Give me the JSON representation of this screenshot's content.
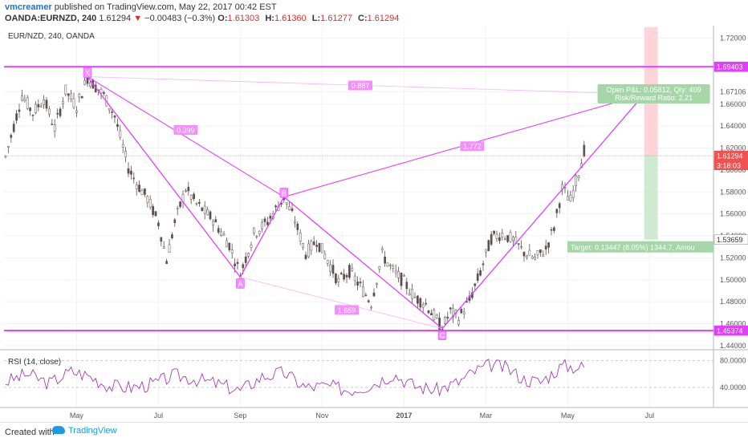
{
  "header": {
    "author": "vmcreamer",
    "published_text": "published on TradingView.com, May 22, 2017 00:42 EST",
    "symbol_line": "OANDA:EURNZD, 240",
    "last_price": "1.61294",
    "change": "−0.00483 (−0.3%)",
    "o_label": "O:",
    "o_value": "1.61303",
    "h_label": "H:",
    "h_value": "1.61360",
    "l_label": "L:",
    "l_value": "1.61277",
    "c_label": "C:",
    "c_value": "1.61294"
  },
  "chart": {
    "legend": "EUR/NZD, 240, OANDA",
    "rsi_legend": "RSI (14, close)",
    "price_axis": {
      "range": [
        1.437,
        1.73
      ],
      "ticks": [
        "1.72000",
        "1.67106",
        "1.66000",
        "1.64000",
        "1.62000",
        "1.60000",
        "1.58000",
        "1.56000",
        "1.54000",
        "1.52000",
        "1.50000",
        "1.48000",
        "1.46000",
        "1.44000"
      ],
      "tick_values": [
        1.72,
        1.67106,
        1.66,
        1.64,
        1.62,
        1.6,
        1.58,
        1.56,
        1.54,
        1.52,
        1.5,
        1.48,
        1.46,
        1.44
      ]
    },
    "price_badges": [
      {
        "label": "1.69403",
        "value": 1.69403,
        "color": "#e040fb"
      },
      {
        "label": "1.61294",
        "value": 1.61294,
        "color": "#ef5350"
      },
      {
        "label": "3:18:03",
        "value": 1.6045,
        "color": "#ef5350"
      },
      {
        "label": "1.53659",
        "value": 1.53659,
        "color": "#ffffff"
      },
      {
        "label": "1.45374",
        "value": 1.45374,
        "color": "#e040fb"
      }
    ],
    "rsi_axis": {
      "ticks": [
        "80.0000",
        "40.0000"
      ],
      "tick_values": [
        80,
        40
      ],
      "range": [
        10,
        95
      ]
    },
    "time_axis": {
      "labels": [
        "May",
        "Jul",
        "Sep",
        "Nov",
        "2017",
        "Mar",
        "May",
        "Jul"
      ],
      "bar_index": [
        26,
        56,
        86,
        116,
        146,
        176,
        206,
        236
      ],
      "bold": [
        false,
        false,
        false,
        false,
        true,
        false,
        false,
        false
      ]
    },
    "horizontal_levels": [
      1.69403,
      1.45374
    ],
    "current_price": 1.61294,
    "pattern_points": [
      {
        "label": "X",
        "bar": 30,
        "price": 1.685
      },
      {
        "label": "A",
        "bar": 86,
        "price": 1.5025
      },
      {
        "label": "B",
        "bar": 102,
        "price": 1.5755
      },
      {
        "label": "C",
        "bar": 160,
        "price": 1.4555
      },
      {
        "label": "D",
        "bar": 234,
        "price": 1.669
      }
    ],
    "ratios": [
      {
        "label": "0.887",
        "bar": 130,
        "price": 1.677
      },
      {
        "label": "0.399",
        "bar": 66,
        "price": 1.6365
      },
      {
        "label": "1.772",
        "bar": 171,
        "price": 1.6217
      },
      {
        "label": "1.659",
        "bar": 125,
        "price": 1.4725
      }
    ],
    "position": {
      "entry": 1.61294,
      "stop": 1.7301,
      "target": 1.53659,
      "bar_start": 234,
      "bar_end": 239,
      "pnl_line1": "Open P&L: 0.05812, Qty: 409",
      "pnl_line2": "Risk/Reward Ratio: 2.21",
      "target_text": "Target: 0.13447 (8.05%) 1344.7, Amou"
    },
    "price_bars": 212,
    "price_path": [
      [
        0,
        1.612
      ],
      [
        6,
        1.668
      ],
      [
        10,
        1.652
      ],
      [
        14,
        1.665
      ],
      [
        18,
        1.638
      ],
      [
        22,
        1.672
      ],
      [
        26,
        1.658
      ],
      [
        30,
        1.684
      ],
      [
        36,
        1.668
      ],
      [
        40,
        1.649
      ],
      [
        45,
        1.602
      ],
      [
        48,
        1.588
      ],
      [
        52,
        1.574
      ],
      [
        56,
        1.552
      ],
      [
        59,
        1.518
      ],
      [
        62,
        1.552
      ],
      [
        66,
        1.583
      ],
      [
        70,
        1.569
      ],
      [
        76,
        1.555
      ],
      [
        82,
        1.532
      ],
      [
        86,
        1.505
      ],
      [
        91,
        1.542
      ],
      [
        96,
        1.553
      ],
      [
        102,
        1.575
      ],
      [
        106,
        1.554
      ],
      [
        110,
        1.524
      ],
      [
        114,
        1.536
      ],
      [
        118,
        1.518
      ],
      [
        122,
        1.498
      ],
      [
        126,
        1.508
      ],
      [
        130,
        1.494
      ],
      [
        134,
        1.479
      ],
      [
        138,
        1.523
      ],
      [
        142,
        1.508
      ],
      [
        146,
        1.498
      ],
      [
        150,
        1.484
      ],
      [
        154,
        1.478
      ],
      [
        157,
        1.467
      ],
      [
        160,
        1.456
      ],
      [
        163,
        1.471
      ],
      [
        166,
        1.465
      ],
      [
        170,
        1.481
      ],
      [
        174,
        1.507
      ],
      [
        178,
        1.538
      ],
      [
        182,
        1.542
      ],
      [
        186,
        1.536
      ],
      [
        190,
        1.525
      ],
      [
        194,
        1.519
      ],
      [
        198,
        1.528
      ],
      [
        201,
        1.548
      ],
      [
        204,
        1.583
      ],
      [
        207,
        1.572
      ],
      [
        210,
        1.598
      ],
      [
        212,
        1.618
      ]
    ],
    "rsi_path": [
      [
        0,
        48
      ],
      [
        8,
        60
      ],
      [
        16,
        46
      ],
      [
        24,
        64
      ],
      [
        30,
        58
      ],
      [
        38,
        42
      ],
      [
        46,
        40
      ],
      [
        54,
        45
      ],
      [
        62,
        58
      ],
      [
        70,
        52
      ],
      [
        78,
        45
      ],
      [
        86,
        35
      ],
      [
        94,
        56
      ],
      [
        102,
        62
      ],
      [
        110,
        40
      ],
      [
        118,
        42
      ],
      [
        126,
        36
      ],
      [
        134,
        44
      ],
      [
        142,
        60
      ],
      [
        150,
        42
      ],
      [
        158,
        36
      ],
      [
        166,
        48
      ],
      [
        172,
        64
      ],
      [
        178,
        74
      ],
      [
        184,
        68
      ],
      [
        190,
        52
      ],
      [
        196,
        48
      ],
      [
        204,
        72
      ],
      [
        212,
        70
      ]
    ],
    "colors": {
      "pattern": "#e040fb",
      "candle": "#5d4f4f",
      "rsi": "#9c27b0",
      "profit": "#c8e6c9",
      "loss": "#ffcdd2"
    }
  },
  "footer": {
    "created": "Created with",
    "brand": "TradingView"
  }
}
